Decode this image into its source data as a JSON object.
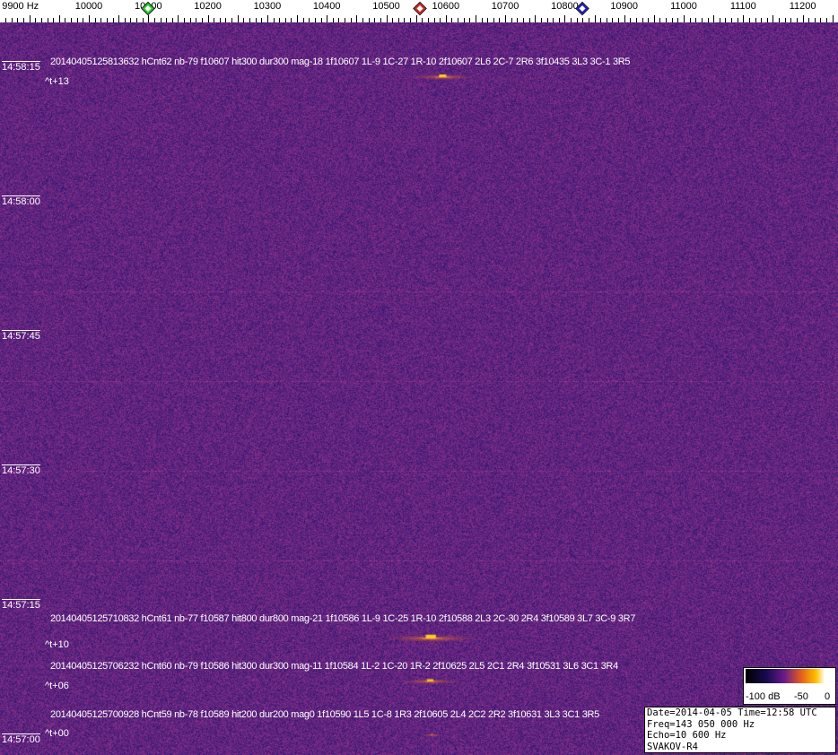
{
  "freq_axis": {
    "labels": [
      "9900 Hz",
      "10000",
      "10100",
      "10200",
      "10300",
      "10400",
      "10500",
      "10600",
      "10700",
      "10800",
      "10900",
      "11000",
      "11100",
      "11200"
    ],
    "markers": [
      {
        "name": "green-marker",
        "freq": 10100,
        "color": "#22cc22"
      },
      {
        "name": "red-marker",
        "freq": 10556,
        "color": "#dd2222"
      },
      {
        "name": "blue-marker",
        "freq": 10830,
        "color": "#1a1acc"
      }
    ]
  },
  "time_axis": [
    "14:58:15",
    "14:58:00",
    "14:57:45",
    "14:57:30",
    "14:57:15",
    "14:57:00"
  ],
  "events": [
    {
      "text": "20140405125813632 hCnt62 nb-79 f10607 hit300 dur300 mag-18 1f10607 1L-9 1C-27 1R-10 2f10607 2L6 2C-7 2R6 3f10435 3L3 3C-1 3R5",
      "rel": "^t+13",
      "freq": 10607
    },
    {
      "text": "20140405125710832 hCnt61 nb-77 f10587 hit800 dur800 mag-21 1f10586 1L-9 1C-25 1R-10 2f10588 2L3 2C-30 2R4 3f10589 3L7 3C-9 3R7",
      "rel": "^t+10",
      "freq": 10587
    },
    {
      "text": "20140405125706232 hCnt60 nb-79 f10586 hit300 dur300 mag-11 1f10584 1L-2 1C-20 1R-2 2f10625 2L5 2C1 2R4 3f10531 3L6 3C1 3R4",
      "rel": "^t+06",
      "freq": 10586
    },
    {
      "text": "20140405125700928 hCnt59 nb-78 f10589 hit200 dur200 mag0 1f10590 1L5 1C-8 1R3 2f10605 2L4 2C2 2R2 3f10631 3L3 3C1 3R5",
      "rel": "^t+00",
      "freq": 10589
    }
  ],
  "legend": {
    "labels": [
      "-100 dB",
      "-50",
      "0"
    ]
  },
  "info": {
    "line1": "Date=2014-04-05 Time=12:58 UTC",
    "line2": "Freq=143 050 000 Hz",
    "line3": "Echo=10 600 Hz",
    "line4": "SVAKOV-R4"
  }
}
